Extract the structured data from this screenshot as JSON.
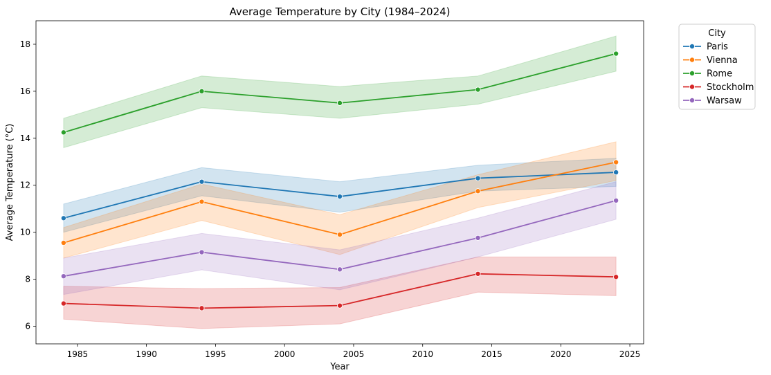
{
  "chart_data": {
    "type": "line",
    "title": "Average Temperature by City (1984–2024)",
    "xlabel": "Year",
    "ylabel": "Average Temperature (°C)",
    "x": [
      1984,
      1994,
      2004,
      2014,
      2024
    ],
    "xlim": [
      1982,
      2026
    ],
    "ylim": [
      5.25,
      19.0
    ],
    "xticks": [
      1985,
      1990,
      1995,
      2000,
      2005,
      2010,
      2015,
      2020,
      2025
    ],
    "yticks": [
      6,
      8,
      10,
      12,
      14,
      16,
      18
    ],
    "grid": false,
    "legend": {
      "title": "City",
      "placement": "outside-top-right"
    },
    "series": [
      {
        "name": "Paris",
        "color": "#1f77b4",
        "values": [
          10.6,
          12.15,
          11.52,
          12.3,
          12.55
        ],
        "ci_lower": [
          10.0,
          11.55,
          10.85,
          11.75,
          11.95
        ],
        "ci_upper": [
          11.2,
          12.75,
          12.15,
          12.85,
          13.15
        ]
      },
      {
        "name": "Vienna",
        "color": "#ff7f0e",
        "values": [
          9.55,
          11.3,
          9.9,
          11.75,
          12.98
        ],
        "ci_lower": [
          8.9,
          10.5,
          9.05,
          11.05,
          12.2
        ],
        "ci_upper": [
          10.2,
          12.05,
          10.75,
          12.45,
          13.85
        ]
      },
      {
        "name": "Rome",
        "color": "#2ca02c",
        "values": [
          14.25,
          16.0,
          15.5,
          16.07,
          17.6
        ],
        "ci_lower": [
          13.6,
          15.3,
          14.85,
          15.45,
          16.85
        ],
        "ci_upper": [
          14.85,
          16.65,
          16.2,
          16.65,
          18.35
        ]
      },
      {
        "name": "Stockholm",
        "color": "#d62728",
        "values": [
          6.97,
          6.77,
          6.88,
          8.23,
          8.1
        ],
        "ci_lower": [
          6.3,
          5.9,
          6.1,
          7.45,
          7.3
        ],
        "ci_upper": [
          7.7,
          7.6,
          7.65,
          8.95,
          8.95
        ]
      },
      {
        "name": "Warsaw",
        "color": "#9467bd",
        "values": [
          8.13,
          9.15,
          8.42,
          9.76,
          11.35
        ],
        "ci_lower": [
          7.35,
          8.4,
          7.55,
          8.95,
          10.55
        ],
        "ci_upper": [
          8.9,
          9.95,
          9.25,
          10.6,
          12.15
        ]
      }
    ]
  }
}
